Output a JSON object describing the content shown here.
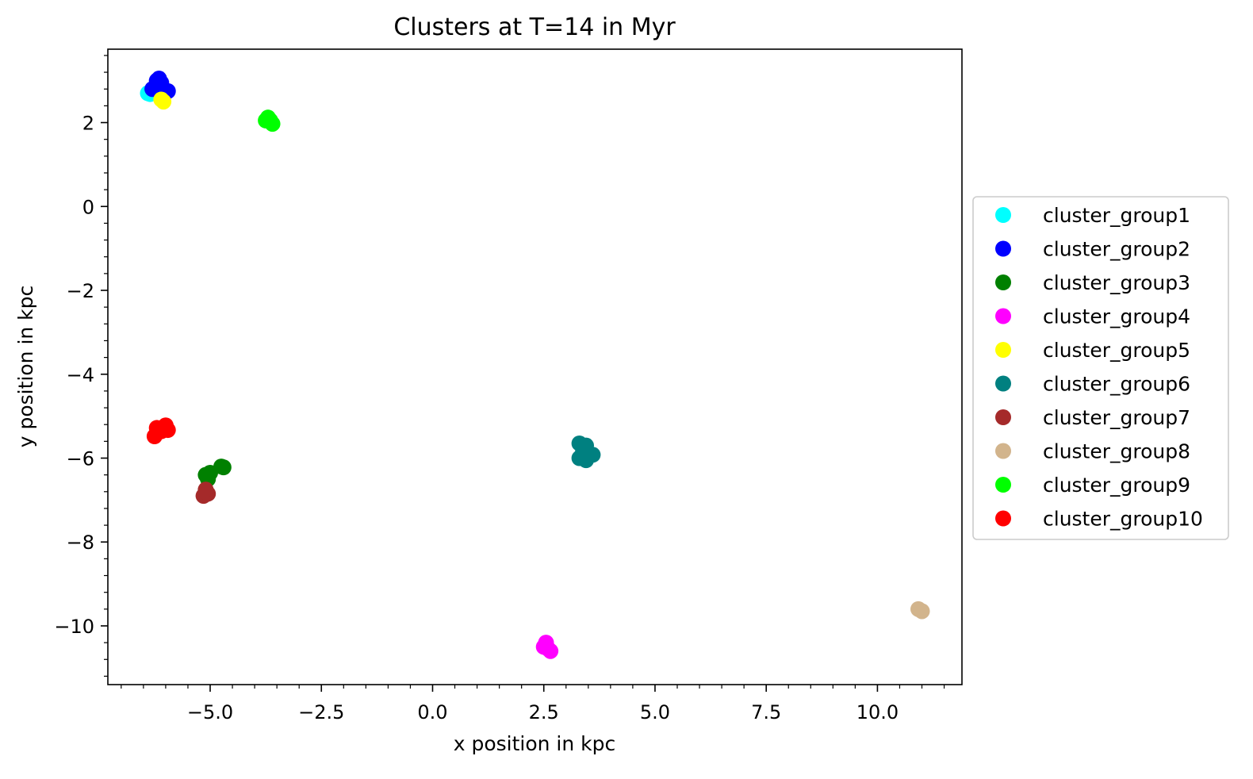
{
  "chart_data": {
    "type": "scatter",
    "title": "Clusters at T=14 in Myr",
    "xlabel": "x position in kpc",
    "ylabel": "y position in kpc",
    "xlim": [
      -7.3,
      11.9
    ],
    "ylim": [
      -11.4,
      3.75
    ],
    "xticks": [
      -5.0,
      -2.5,
      0.0,
      2.5,
      5.0,
      7.5,
      10.0
    ],
    "xtick_labels": [
      "−5.0",
      "−2.5",
      "0.0",
      "2.5",
      "5.0",
      "7.5",
      "10.0"
    ],
    "yticks": [
      2,
      0,
      -2,
      -4,
      -6,
      -8,
      -10
    ],
    "ytick_labels": [
      "2",
      "0",
      "−2",
      "−4",
      "−6",
      "−8",
      "−10"
    ],
    "grid": false,
    "legend_position": "outside-right",
    "series": [
      {
        "name": "cluster_group1",
        "color": "#00ffff",
        "points": [
          [
            -6.4,
            2.7
          ],
          [
            -6.35,
            2.68
          ],
          [
            -6.3,
            2.75
          ]
        ]
      },
      {
        "name": "cluster_group2",
        "color": "#0000ff",
        "points": [
          [
            -6.3,
            2.8
          ],
          [
            -6.2,
            3.0
          ],
          [
            -6.15,
            3.05
          ],
          [
            -6.1,
            2.95
          ],
          [
            -5.95,
            2.75
          ]
        ]
      },
      {
        "name": "cluster_group3",
        "color": "#008000",
        "points": [
          [
            -5.1,
            -6.4
          ],
          [
            -5.0,
            -6.35
          ],
          [
            -5.05,
            -6.5
          ],
          [
            -4.75,
            -6.2
          ],
          [
            -4.7,
            -6.22
          ]
        ]
      },
      {
        "name": "cluster_group4",
        "color": "#ff00ff",
        "points": [
          [
            2.5,
            -10.5
          ],
          [
            2.55,
            -10.4
          ],
          [
            2.6,
            -10.55
          ],
          [
            2.65,
            -10.6
          ]
        ]
      },
      {
        "name": "cluster_group5",
        "color": "#ffff00",
        "points": [
          [
            -6.1,
            2.55
          ],
          [
            -6.05,
            2.5
          ]
        ]
      },
      {
        "name": "cluster_group6",
        "color": "#008080",
        "points": [
          [
            3.3,
            -5.65
          ],
          [
            3.45,
            -5.7
          ],
          [
            3.3,
            -6.0
          ],
          [
            3.45,
            -6.05
          ],
          [
            3.6,
            -5.92
          ],
          [
            3.38,
            -5.85
          ]
        ]
      },
      {
        "name": "cluster_group7",
        "color": "#a52a2a",
        "points": [
          [
            -5.15,
            -6.9
          ],
          [
            -5.05,
            -6.85
          ],
          [
            -5.1,
            -6.75
          ]
        ]
      },
      {
        "name": "cluster_group8",
        "color": "#d2b48c",
        "points": [
          [
            10.92,
            -9.6
          ],
          [
            11.0,
            -9.65
          ]
        ]
      },
      {
        "name": "cluster_group9",
        "color": "#00ff00",
        "points": [
          [
            -3.75,
            2.05
          ],
          [
            -3.7,
            2.12
          ],
          [
            -3.65,
            2.05
          ],
          [
            -3.6,
            1.97
          ]
        ]
      },
      {
        "name": "cluster_group10",
        "color": "#ff0000",
        "points": [
          [
            -6.25,
            -5.48
          ],
          [
            -6.2,
            -5.28
          ],
          [
            -6.1,
            -5.36
          ],
          [
            -6.0,
            -5.22
          ],
          [
            -5.95,
            -5.33
          ]
        ]
      }
    ]
  }
}
